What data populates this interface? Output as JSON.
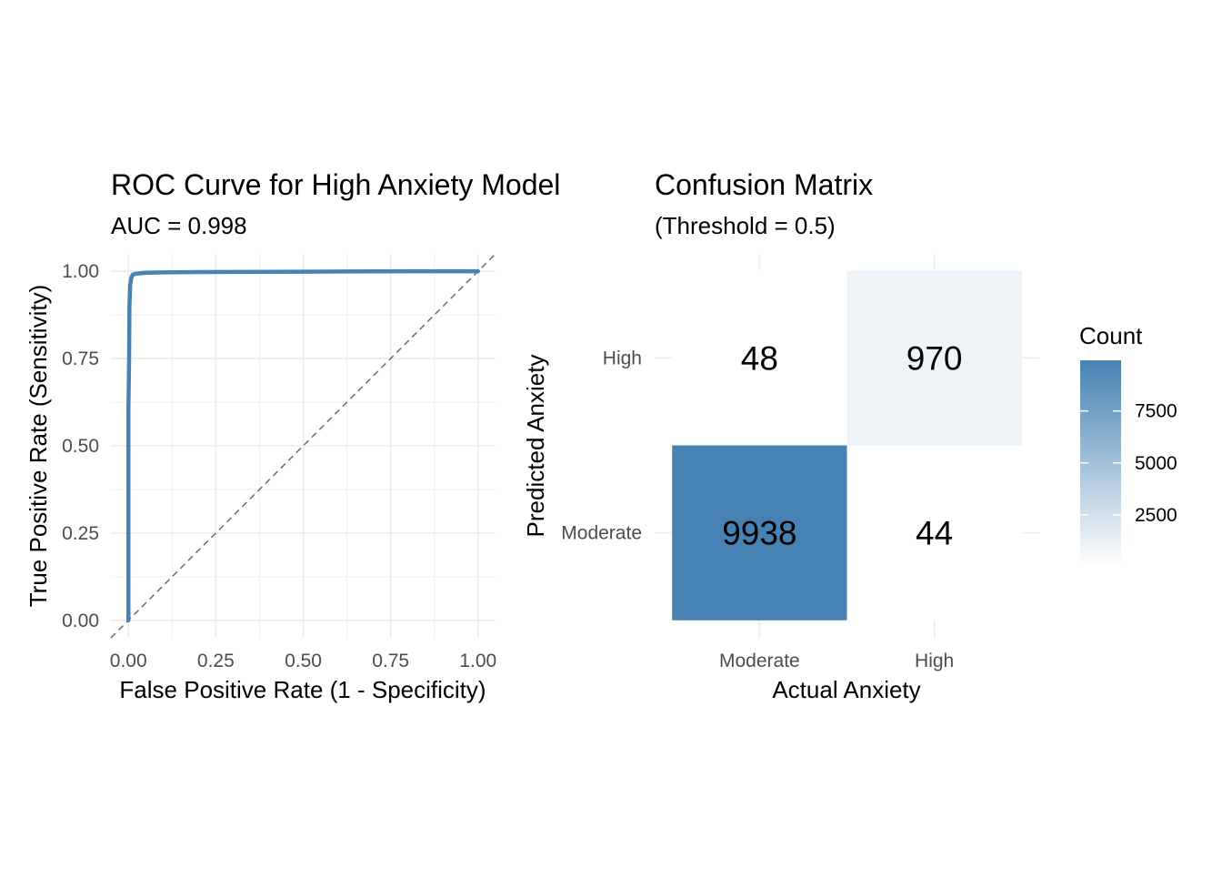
{
  "chart_data": [
    {
      "type": "line",
      "title": "ROC Curve for High Anxiety Model",
      "subtitle": "AUC = 0.998",
      "xlabel": "False Positive Rate (1 - Specificity)",
      "ylabel": "True Positive Rate (Sensitivity)",
      "xlim": [
        -0.05,
        1.05
      ],
      "ylim": [
        -0.05,
        1.05
      ],
      "x_ticks": [
        "0.00",
        "0.25",
        "0.50",
        "0.75",
        "1.00"
      ],
      "y_ticks": [
        "0.00",
        "0.25",
        "0.50",
        "0.75",
        "1.00"
      ],
      "grid": true,
      "reference_line": {
        "from": [
          0,
          0
        ],
        "to": [
          1,
          1
        ],
        "style": "dashed"
      },
      "series": [
        {
          "x": [
            0.0,
            0.0,
            0.002,
            0.003,
            0.004,
            0.005,
            0.008,
            0.012,
            0.02,
            0.05,
            0.1,
            0.2,
            0.5,
            0.8,
            1.0
          ],
          "y": [
            0.0,
            0.6,
            0.75,
            0.9,
            0.93,
            0.96,
            0.98,
            0.99,
            0.993,
            0.996,
            0.997,
            0.998,
            0.999,
            1.0,
            1.0
          ],
          "color": "#4682b4"
        }
      ]
    },
    {
      "type": "heatmap",
      "title": "Confusion Matrix",
      "subtitle": "(Threshold = 0.5)",
      "xlabel": "Actual Anxiety",
      "ylabel": "Predicted Anxiety",
      "x_categories": [
        "Moderate",
        "High"
      ],
      "y_categories": [
        "Moderate",
        "High"
      ],
      "cells": [
        {
          "x": "Moderate",
          "y": "High",
          "value": 48
        },
        {
          "x": "High",
          "y": "High",
          "value": 970
        },
        {
          "x": "Moderate",
          "y": "Moderate",
          "value": 9938
        },
        {
          "x": "High",
          "y": "Moderate",
          "value": 44
        }
      ],
      "color_low": "#ffffff",
      "color_high": "#4682b4",
      "legend": {
        "title": "Count",
        "ticks": [
          2500,
          5000,
          7500
        ],
        "tick_labels": [
          "2500",
          "5000",
          "7500"
        ],
        "min": 44,
        "max": 9938,
        "placement": "right"
      }
    }
  ]
}
